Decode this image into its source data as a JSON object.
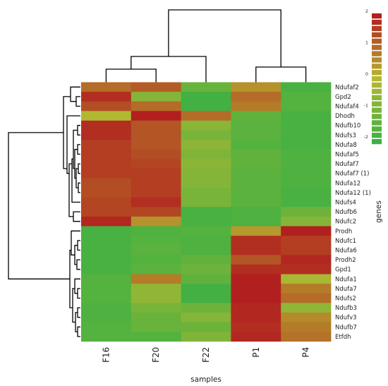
{
  "chart_data": {
    "type": "heatmap",
    "xlabel": "samples",
    "ylabel": "genes",
    "columns": [
      "F16",
      "F20",
      "F22",
      "P1",
      "P4"
    ],
    "rows": [
      "Ndufaf2",
      "Gpd2",
      "Ndufaf4",
      "Dhodh",
      "Ndufb10",
      "Ndufs3",
      "Ndufa8",
      "Ndufaf5",
      "Ndufaf7",
      "Ndufaf7 (1)",
      "Ndufa12",
      "Ndufa12 (1)",
      "Ndufs4",
      "Ndufb6",
      "Ndufc2",
      "Prodh",
      "Ndufc1",
      "Ndufa6",
      "Prodh2",
      "Gpd1",
      "Ndufa1",
      "Ndufa7",
      "Ndufs2",
      "Ndufb3",
      "Ndufv3",
      "Ndufb7",
      "Etfdh"
    ],
    "values": [
      [
        1.0,
        1.2,
        -1.3,
        0.5,
        -1.8
      ],
      [
        1.8,
        -0.8,
        -1.9,
        1.0,
        -1.6
      ],
      [
        1.4,
        1.0,
        -1.9,
        0.8,
        -1.6
      ],
      [
        -0.1,
        2.0,
        1.0,
        -1.4,
        -1.8
      ],
      [
        1.8,
        1.3,
        -0.7,
        -1.5,
        -1.8
      ],
      [
        1.8,
        1.3,
        -1.0,
        -1.5,
        -1.8
      ],
      [
        1.6,
        1.3,
        -0.7,
        -1.6,
        -1.8
      ],
      [
        1.6,
        1.4,
        -0.9,
        -1.4,
        -1.7
      ],
      [
        1.6,
        1.5,
        -0.7,
        -1.4,
        -1.7
      ],
      [
        1.6,
        1.6,
        -0.8,
        -1.5,
        -1.7
      ],
      [
        1.4,
        1.6,
        -0.8,
        -1.5,
        -1.7
      ],
      [
        1.4,
        1.6,
        -1.0,
        -1.5,
        -1.8
      ],
      [
        1.5,
        1.8,
        -1.0,
        -1.5,
        -1.8
      ],
      [
        1.5,
        1.5,
        -1.8,
        -1.7,
        -1.2
      ],
      [
        1.9,
        0.5,
        -1.8,
        -1.7,
        -0.8
      ],
      [
        -1.8,
        -1.7,
        -1.6,
        0.4,
        2.0
      ],
      [
        -1.8,
        -1.6,
        -1.7,
        1.8,
        1.6
      ],
      [
        -1.8,
        -1.5,
        -1.7,
        1.8,
        1.6
      ],
      [
        -1.8,
        -1.6,
        -1.4,
        1.3,
        1.9
      ],
      [
        -1.8,
        -1.5,
        -1.2,
        1.8,
        1.8
      ],
      [
        -1.6,
        0.8,
        -1.4,
        2.0,
        -0.2
      ],
      [
        -1.6,
        -0.6,
        -1.9,
        2.0,
        0.8
      ],
      [
        -1.6,
        -0.6,
        -1.9,
        2.0,
        1.0
      ],
      [
        -1.7,
        -1.0,
        -1.2,
        1.9,
        -0.6
      ],
      [
        -1.7,
        -1.3,
        -0.8,
        1.9,
        0.6
      ],
      [
        -1.6,
        -1.3,
        -1.2,
        1.8,
        0.8
      ],
      [
        -1.6,
        -1.6,
        -0.9,
        1.9,
        0.9
      ]
    ],
    "color_scale": {
      "min": -2,
      "max": 2,
      "low_color": "#3cb043",
      "mid_color": "#b6b830",
      "high_color": "#b21f1f",
      "ticks": [
        "2",
        "1",
        "0",
        "-1",
        "-2"
      ]
    },
    "legend_placement": "top-right",
    "row_dendrogram": true,
    "column_dendrogram": true
  }
}
